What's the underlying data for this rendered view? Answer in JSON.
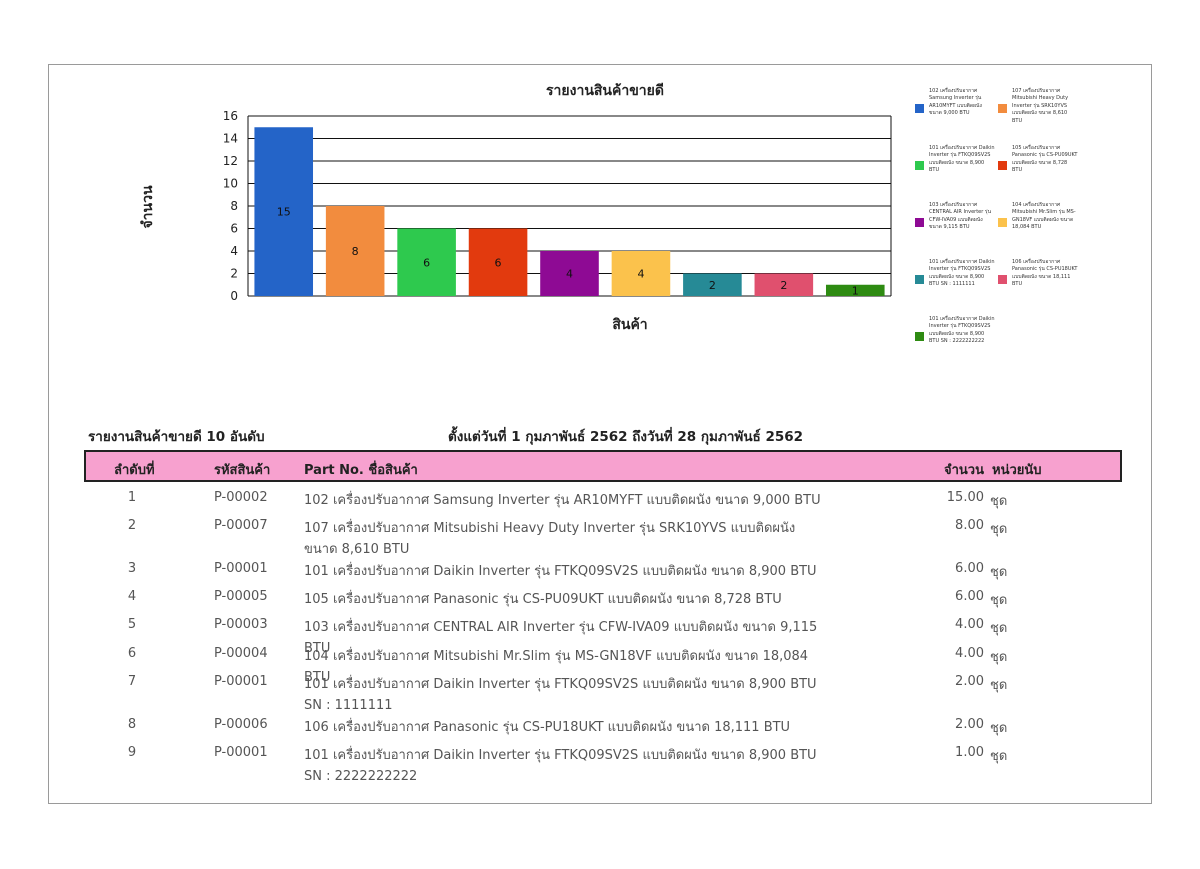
{
  "chart_data": {
    "type": "bar",
    "title": "รายงานสินค้าขายดี",
    "xlabel": "สินค้า",
    "ylabel": "จำนวน",
    "ylim": [
      0,
      16
    ],
    "yticks": [
      0,
      2,
      4,
      6,
      8,
      10,
      12,
      14,
      16
    ],
    "grid": true,
    "legend_position": "right",
    "categories": [
      "102 เครื่องปรับอากาศ Samsung Inverter รุ่น AR10MYFT แบบติดผนัง ขนาด 9,000 BTU",
      "107 เครื่องปรับอากาศ Mitsubishi Heavy Duty Inverter รุ่น SRK10YVS แบบติดผนัง ขนาด 8,610 BTU",
      "101 เครื่องปรับอากาศ Daikin Inverter รุ่น FTKQ09SV2S แบบติดผนัง ขนาด 8,900 BTU",
      "105 เครื่องปรับอากาศ Panasonic รุ่น CS-PU09UKT แบบติดผนัง ขนาด 8,728 BTU",
      "103 เครื่องปรับอากาศ CENTRAL AIR Inverter รุ่น CFW-IVA09 แบบติดผนัง ขนาด 9,115 BTU",
      "104 เครื่องปรับอากาศ Mitsubishi Mr.Slim รุ่น MS-GN18VF แบบติดผนัง ขนาด 18,084 BTU",
      "101 เครื่องปรับอากาศ Daikin Inverter รุ่น FTKQ09SV2S แบบติดผนัง ขนาด 8,900 BTU SN : 1111111",
      "106 เครื่องปรับอากาศ Panasonic รุ่น CS-PU18UKT แบบติดผนัง ขนาด 18,111 BTU",
      "101 เครื่องปรับอากาศ Daikin Inverter รุ่น FTKQ09SV2S แบบติดผนัง ขนาด 8,900 BTU SN : 2222222222"
    ],
    "values": [
      15,
      8,
      6,
      6,
      4,
      4,
      2,
      2,
      1
    ],
    "colors": [
      "#2464c8",
      "#f28c3e",
      "#2ec94e",
      "#e23a0e",
      "#8e0a94",
      "#fbc24c",
      "#268a96",
      "#e0506e",
      "#2e8b12"
    ]
  },
  "report": {
    "title": "รายงานสินค้าขายดี  10  อันดับ",
    "period": "ตั้งแต่วันที่ 1 กุมภาพันธ์ 2562  ถึงวันที่ 28 กุมภาพันธ์ 2562",
    "headers": {
      "no": "ลำดับที่",
      "code": "รหัสสินค้า",
      "name": "Part No.  ชื่อสินค้า",
      "qty": "จำนวน",
      "unit": "หน่วยนับ"
    },
    "rows": [
      {
        "no": "1",
        "code": "P-00002",
        "name": "102 เครื่องปรับอากาศ Samsung  Inverter รุ่น AR10MYFT แบบติดผนัง ขนาด 9,000 BTU",
        "qty": "15.00",
        "unit": "ชุด"
      },
      {
        "no": "2",
        "code": "P-00007",
        "name": "107 เครื่องปรับอากาศ Mitsubishi Heavy Duty  Inverter รุ่น SRK10YVS แบบติดผนัง ขนาด 8,610 BTU",
        "qty": "8.00",
        "unit": "ชุด"
      },
      {
        "no": "3",
        "code": "P-00001",
        "name": "101 เครื่องปรับอากาศ Daikin Inverter รุ่น FTKQ09SV2S แบบติดผนัง ขนาด 8,900 BTU",
        "qty": "6.00",
        "unit": "ชุด"
      },
      {
        "no": "4",
        "code": "P-00005",
        "name": "105 เครื่องปรับอากาศ Panasonic รุ่น CS-PU09UKT แบบติดผนัง ขนาด 8,728  BTU",
        "qty": "6.00",
        "unit": "ชุด"
      },
      {
        "no": "5",
        "code": "P-00003",
        "name": "103 เครื่องปรับอากาศ CENTRAL AIR  Inverter รุ่น CFW-IVA09 แบบติดผนัง ขนาด 9,115 BTU",
        "qty": "4.00",
        "unit": "ชุด"
      },
      {
        "no": "6",
        "code": "P-00004",
        "name": "104 เครื่องปรับอากาศ Mitsubishi Mr.Slim รุ่น MS-GN18VF แบบติดผนัง ขนาด 18,084 BTU",
        "qty": "4.00",
        "unit": "ชุด"
      },
      {
        "no": "7",
        "code": "P-00001",
        "name": "101 เครื่องปรับอากาศ Daikin Inverter รุ่น FTKQ09SV2S แบบติดผนัง ขนาด 8,900 BTU SN : 1111111",
        "qty": "2.00",
        "unit": "ชุด"
      },
      {
        "no": "8",
        "code": "P-00006",
        "name": "106 เครื่องปรับอากาศ Panasonic รุ่น CS-PU18UKT แบบติดผนัง ขนาด 18,111 BTU",
        "qty": "2.00",
        "unit": "ชุด"
      },
      {
        "no": "9",
        "code": "P-00001",
        "name": "101 เครื่องปรับอากาศ Daikin Inverter รุ่น FTKQ09SV2S แบบติดผนัง ขนาด 8,900 BTU SN : 2222222222",
        "qty": "1.00",
        "unit": "ชุด"
      }
    ]
  }
}
